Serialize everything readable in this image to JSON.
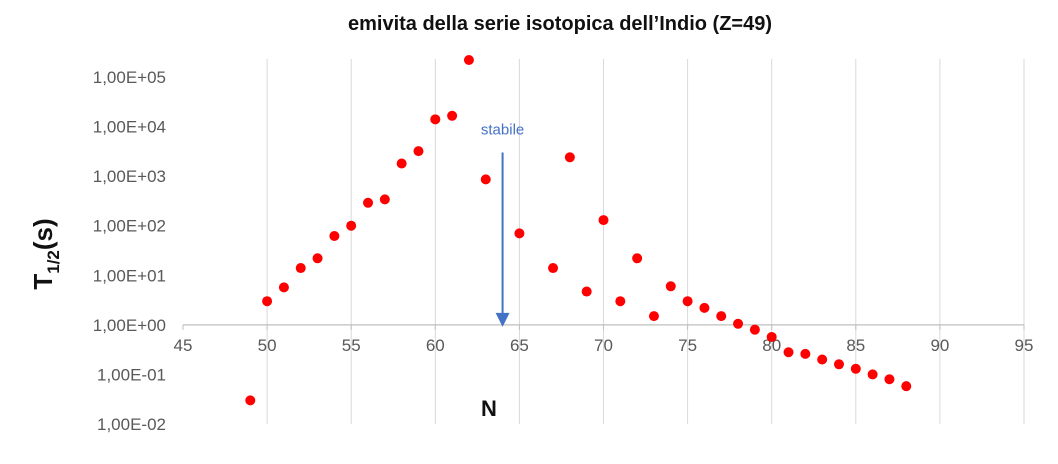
{
  "chart_data": {
    "type": "scatter",
    "title": "emivita della serie isotopica dell’Indio  (Z=49)",
    "xlabel": "N",
    "ylabel": {
      "base": "T",
      "sub": "1/2",
      "tail": "(s)"
    },
    "x_ticks": [
      45,
      50,
      55,
      60,
      65,
      70,
      75,
      80,
      85,
      90,
      95
    ],
    "x_tick_labels": [
      "45",
      "50",
      "55",
      "60",
      "65",
      "70",
      "75",
      "80",
      "85",
      "90",
      "95"
    ],
    "xlim": [
      45,
      95
    ],
    "y_scale": "log",
    "ylim": [
      0.01,
      100000
    ],
    "y_ticks": [
      0.01,
      0.1,
      1,
      10,
      100,
      1000,
      10000,
      100000
    ],
    "y_tick_labels": [
      "1,00E-02",
      "1,00E-01",
      "1,00E+00",
      "1,00E+01",
      "1,00E+02",
      "1,00E+03",
      "1,00E+04",
      "1,00E+05"
    ],
    "grid": "vertical",
    "x_axis_crosses_at": 1,
    "marker_color": "#ff0000",
    "annotation": {
      "text": "stabile",
      "x": 64,
      "color": "#4472c4"
    },
    "points": [
      {
        "x": 49,
        "y": 0.03
      },
      {
        "x": 50,
        "y": 3
      },
      {
        "x": 51,
        "y": 5.7
      },
      {
        "x": 52,
        "y": 14
      },
      {
        "x": 53,
        "y": 22
      },
      {
        "x": 54,
        "y": 62
      },
      {
        "x": 55,
        "y": 100
      },
      {
        "x": 56,
        "y": 290
      },
      {
        "x": 57,
        "y": 340
      },
      {
        "x": 58,
        "y": 1800
      },
      {
        "x": 59,
        "y": 3200
      },
      {
        "x": 60,
        "y": 14000
      },
      {
        "x": 61,
        "y": 16500
      },
      {
        "x": 62,
        "y": 220000
      },
      {
        "x": 63,
        "y": 860
      },
      {
        "x": 65,
        "y": 70
      },
      {
        "x": 67,
        "y": 14
      },
      {
        "x": 68,
        "y": 2400
      },
      {
        "x": 69,
        "y": 4.7
      },
      {
        "x": 70,
        "y": 130
      },
      {
        "x": 71,
        "y": 3
      },
      {
        "x": 72,
        "y": 22
      },
      {
        "x": 73,
        "y": 1.5
      },
      {
        "x": 74,
        "y": 6
      },
      {
        "x": 75,
        "y": 3
      },
      {
        "x": 76,
        "y": 2.2
      },
      {
        "x": 77,
        "y": 1.5
      },
      {
        "x": 78,
        "y": 1.05
      },
      {
        "x": 79,
        "y": 0.8
      },
      {
        "x": 80,
        "y": 0.57
      },
      {
        "x": 81,
        "y": 0.28
      },
      {
        "x": 82,
        "y": 0.26
      },
      {
        "x": 83,
        "y": 0.2
      },
      {
        "x": 84,
        "y": 0.16
      },
      {
        "x": 85,
        "y": 0.13
      },
      {
        "x": 86,
        "y": 0.1
      },
      {
        "x": 87,
        "y": 0.08
      },
      {
        "x": 88,
        "y": 0.058
      }
    ]
  }
}
